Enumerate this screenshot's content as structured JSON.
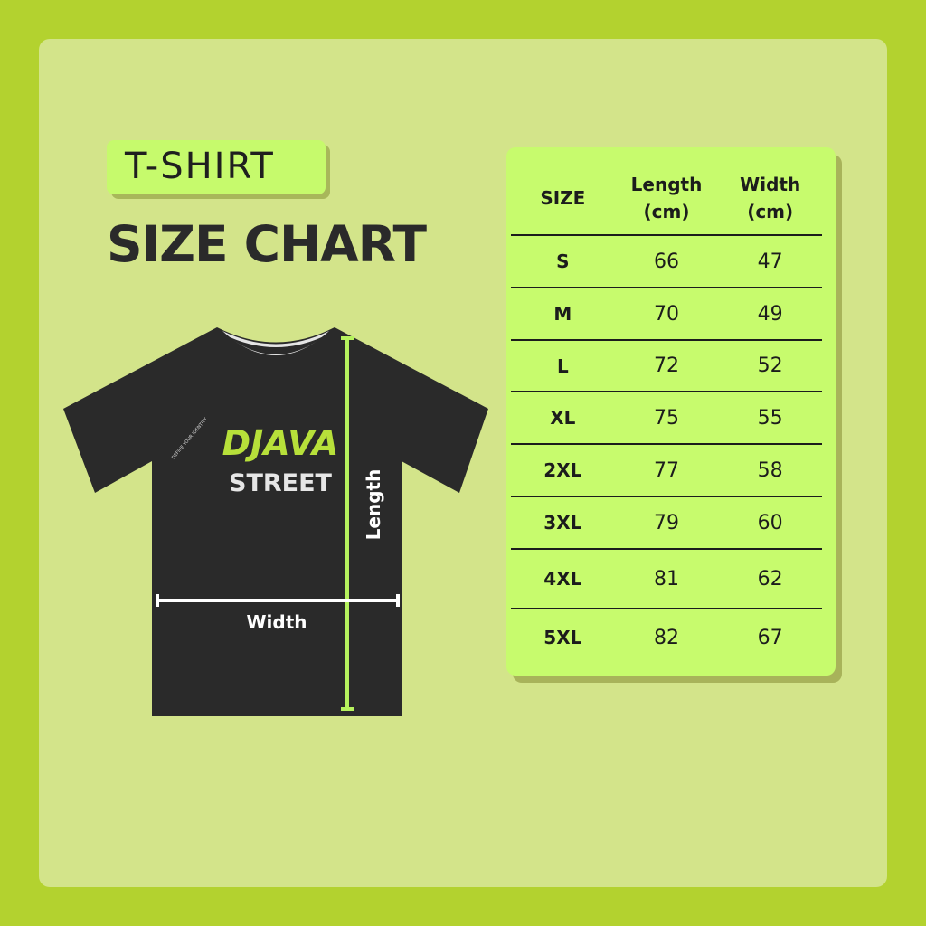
{
  "heading": {
    "tag": "T-SHIRT",
    "title": "SIZE CHART"
  },
  "shirt": {
    "logo_top": "DJAVA",
    "logo_bottom": "STREET",
    "logo_small": "DEFINE YOUR IDENTITY",
    "length_label": "Length",
    "width_label": "Width"
  },
  "table": {
    "headers": [
      "SIZE",
      "Length\n(cm)",
      "Width\n(cm)"
    ],
    "header_lines": [
      [
        "SIZE"
      ],
      [
        "Length",
        "(cm)"
      ],
      [
        "Width",
        "(cm)"
      ]
    ],
    "rows": [
      [
        "S",
        "66",
        "47"
      ],
      [
        "M",
        "70",
        "49"
      ],
      [
        "L",
        "72",
        "52"
      ],
      [
        "XL",
        "75",
        "55"
      ],
      [
        "2XL",
        "77",
        "58"
      ],
      [
        "3XL",
        "79",
        "60"
      ],
      [
        "4XL",
        "81",
        "62"
      ],
      [
        "5XL",
        "82",
        "67"
      ]
    ]
  },
  "colors": {
    "background": "#b3d22f",
    "panel": "#d3e48a",
    "accent": "#c7fb6d",
    "shirt": "#2a2a2a"
  }
}
